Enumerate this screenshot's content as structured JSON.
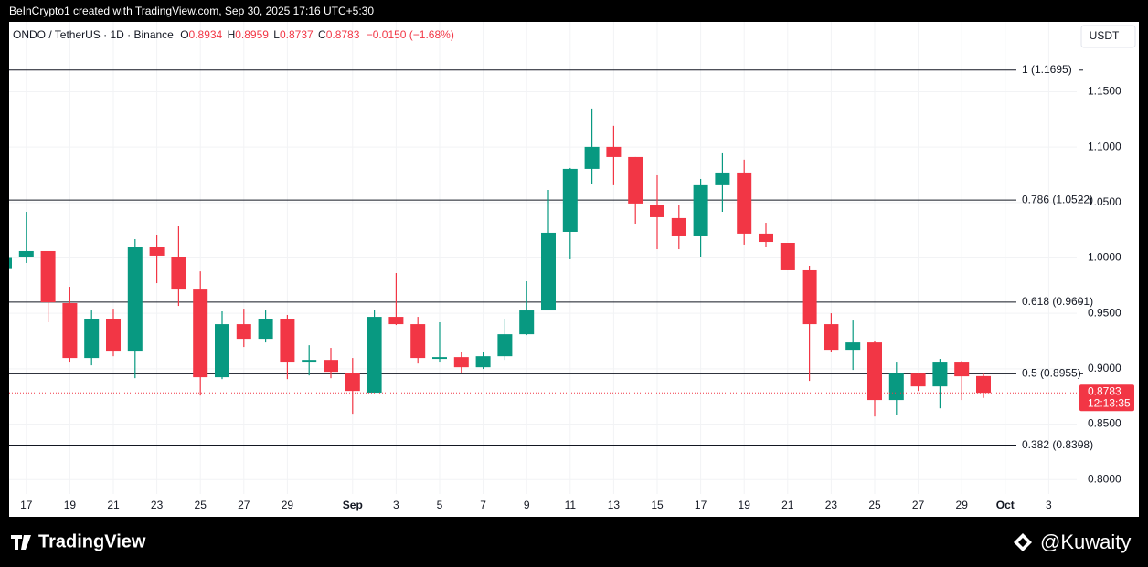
{
  "credit": "BeInCrypto1 created with TradingView.com, Sep 30, 2025 17:16 UTC+5:30",
  "chart_data": {
    "type": "candlestick",
    "header": {
      "symbol": "ONDO / TetherUS · 1D · Binance",
      "fields": [
        {
          "label": "O",
          "value": "0.8934"
        },
        {
          "label": "H",
          "value": "0.8959"
        },
        {
          "label": "L",
          "value": "0.8737"
        },
        {
          "label": "C",
          "value": "0.8783"
        }
      ],
      "change": "−0.0150 (−1.68%)"
    },
    "currency": "USDT",
    "categories": [
      null,
      "17",
      null,
      "19",
      null,
      "21",
      null,
      "23",
      null,
      "25",
      null,
      "27",
      null,
      "29",
      null,
      null,
      "Sep",
      null,
      "3",
      null,
      "5",
      null,
      "7",
      null,
      "9",
      null,
      "11",
      null,
      "13",
      null,
      "15",
      null,
      "17",
      null,
      "19",
      null,
      "21",
      null,
      "23",
      null,
      "25",
      null,
      "27",
      null,
      "29",
      null,
      "Oct",
      null,
      "3"
    ],
    "open": [
      0.99,
      1.0012,
      1.0062,
      0.9592,
      0.9097,
      0.9452,
      0.9163,
      1.0103,
      1.0012,
      0.9715,
      0.8924,
      0.9402,
      0.927,
      0.9452,
      0.9056,
      0.908,
      0.8965,
      0.8784,
      0.9468,
      0.9402,
      0.9089,
      0.9105,
      0.9014,
      0.9113,
      0.9311,
      0.9526,
      1.0235,
      1.0804,
      1.1002,
      1.0911,
      1.0482,
      1.0359,
      1.0202,
      1.0656,
      1.0771,
      1.0219,
      1.0136,
      0.9889,
      0.9402,
      0.9171,
      0.9237,
      0.8718,
      0.8957,
      0.8841,
      0.9056,
      0.8934,
      null,
      null,
      null
    ],
    "high": [
      1.003,
      1.0416,
      1.0062,
      0.974,
      0.9526,
      0.9542,
      1.0169,
      1.021,
      1.0285,
      0.988,
      0.9518,
      0.9542,
      0.9526,
      0.9485,
      0.9212,
      0.9188,
      0.9097,
      0.9534,
      0.9864,
      0.9468,
      0.9419,
      0.9155,
      0.9155,
      0.9452,
      0.979,
      1.0614,
      1.0812,
      1.1348,
      1.1192,
      1.0911,
      1.0746,
      1.0474,
      1.0713,
      1.0944,
      1.0887,
      1.0317,
      1.0136,
      0.993,
      0.9501,
      0.9435,
      0.9254,
      0.9056,
      0.8957,
      0.9089,
      0.9072,
      0.8959,
      null,
      null,
      null
    ],
    "low": [
      0.988,
      0.9955,
      0.9419,
      0.9056,
      0.9031,
      0.9113,
      0.8915,
      0.9773,
      0.9567,
      0.8759,
      0.8907,
      0.9196,
      0.9237,
      0.8907,
      0.894,
      0.8915,
      0.8594,
      0.8784,
      0.9394,
      0.9047,
      0.9056,
      0.8965,
      0.8998,
      0.908,
      0.9303,
      0.9526,
      0.9988,
      1.0664,
      1.0656,
      1.0309,
      1.0078,
      1.0078,
      1.0012,
      1.0416,
      1.012,
      1.0103,
      0.9889,
      0.8891,
      0.9155,
      0.899,
      0.8569,
      0.8586,
      0.88,
      0.8643,
      0.8718,
      0.8737,
      null,
      null,
      null
    ],
    "close": [
      1.0,
      1.0062,
      0.96,
      0.9097,
      0.9452,
      0.9163,
      1.0103,
      1.0021,
      0.9715,
      0.8924,
      0.9402,
      0.927,
      0.9452,
      0.9056,
      0.908,
      0.8973,
      0.88,
      0.9468,
      0.9402,
      0.9097,
      0.9105,
      0.9014,
      0.9113,
      0.9311,
      0.9526,
      1.0227,
      1.0804,
      1.1002,
      1.0911,
      1.0491,
      1.0367,
      1.0202,
      1.0656,
      1.0771,
      1.0219,
      1.0144,
      0.9889,
      0.9402,
      0.9171,
      0.9237,
      0.8718,
      0.8957,
      0.8841,
      0.9056,
      0.8932,
      0.8783,
      null,
      null,
      null
    ],
    "up_color": "#089981",
    "down_color": "#f23645",
    "ylim": [
      0.787,
      1.213
    ],
    "yticks": [
      {
        "value": 0.8,
        "label": "0.8000"
      },
      {
        "value": 0.85,
        "label": "0.8500"
      },
      {
        "value": 0.9,
        "label": "0.9000"
      },
      {
        "value": 0.95,
        "label": "0.9500"
      },
      {
        "value": 1.0,
        "label": "1.0000"
      },
      {
        "value": 1.05,
        "label": "1.0500"
      },
      {
        "value": 1.1,
        "label": "1.1000"
      },
      {
        "value": 1.15,
        "label": "1.1500"
      }
    ],
    "levels": [
      {
        "value": 1.1695,
        "label": "1 (1.1695)"
      },
      {
        "value": 1.0522,
        "label": "0.786 (1.0522)"
      },
      {
        "value": 0.9601,
        "label": "0.618 (0.9601)"
      },
      {
        "value": 0.8955,
        "label": "0.5 (0.8955)"
      },
      {
        "value": 0.8308,
        "label": "0.382 (0.8308)"
      }
    ],
    "last_price": {
      "value": 0.8783,
      "label": "0.8783"
    },
    "countdown": "12:13:35",
    "grid": true
  },
  "footer": {
    "brand": "TradingView",
    "watermark": "@Kuwaity"
  }
}
